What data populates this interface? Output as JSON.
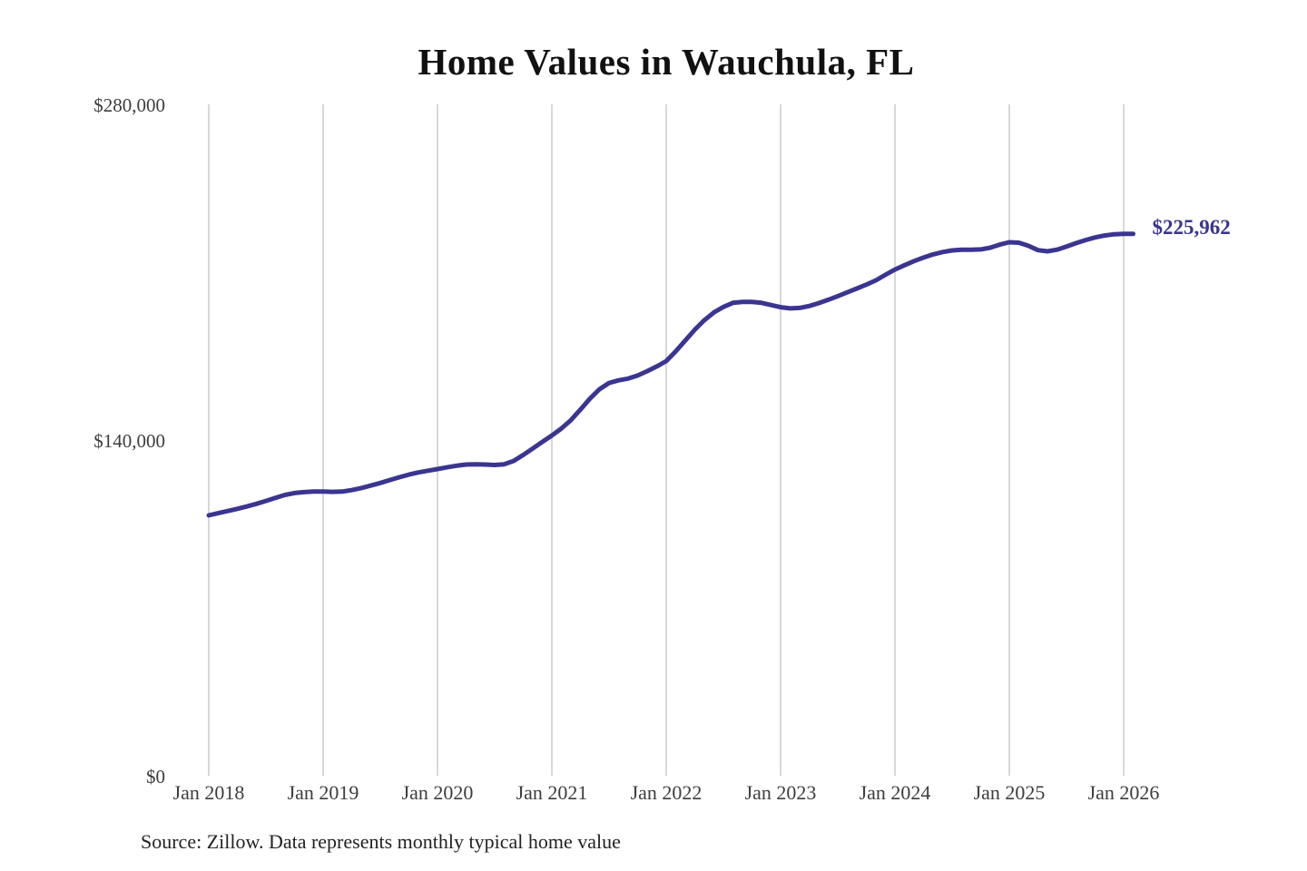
{
  "chart": {
    "title": "Home Values in Wauchula, FL",
    "current_value_label": "$225,962",
    "source_note": "Source: Zillow. Data represents monthly typical home value"
  },
  "chart_data": {
    "type": "line",
    "title": "Home Values in Wauchula, FL",
    "series_name": "Monthly typical home value",
    "x_monthly_start": "Jan 2018",
    "x_monthly_end": "Feb 2026",
    "x_tick_labels": [
      "Jan 2018",
      "Jan 2019",
      "Jan 2020",
      "Jan 2021",
      "Jan 2022",
      "Jan 2023",
      "Jan 2024",
      "Jan 2025",
      "Jan 2026"
    ],
    "y_ticks": [
      0,
      140000,
      280000
    ],
    "y_tick_labels": [
      "$0",
      "$140,000",
      "$280,000"
    ],
    "ylim": [
      0,
      280000
    ],
    "grid": "vertical-only",
    "legend": "none",
    "line_color": "#3a3590",
    "gridline_color": "#cccccc",
    "annotation": "$225,962",
    "current_value": 225962,
    "values_monthly": [
      108600,
      109500,
      110400,
      111300,
      112300,
      113400,
      114600,
      115900,
      117100,
      117900,
      118300,
      118500,
      118500,
      118400,
      118500,
      119100,
      120000,
      121000,
      122100,
      123300,
      124500,
      125600,
      126500,
      127200,
      127900,
      128600,
      129300,
      129800,
      129900,
      129800,
      129600,
      129900,
      131300,
      133800,
      136500,
      139200,
      141900,
      144800,
      148300,
      152700,
      157300,
      161200,
      163800,
      164900,
      165600,
      166900,
      168700,
      170700,
      172900,
      177000,
      181500,
      186000,
      190000,
      193200,
      195500,
      197200,
      197600,
      197600,
      197200,
      196300,
      195400,
      194900,
      195100,
      195900,
      197100,
      198500,
      200000,
      201600,
      203200,
      204800,
      206600,
      208900,
      211100,
      212900,
      214600,
      216100,
      217400,
      218400,
      219100,
      219400,
      219400,
      219500,
      220200,
      221500,
      222500,
      222300,
      221000,
      219200,
      218700,
      219400,
      220700,
      222100,
      223400,
      224500,
      225300,
      225800,
      225950,
      225962
    ]
  }
}
